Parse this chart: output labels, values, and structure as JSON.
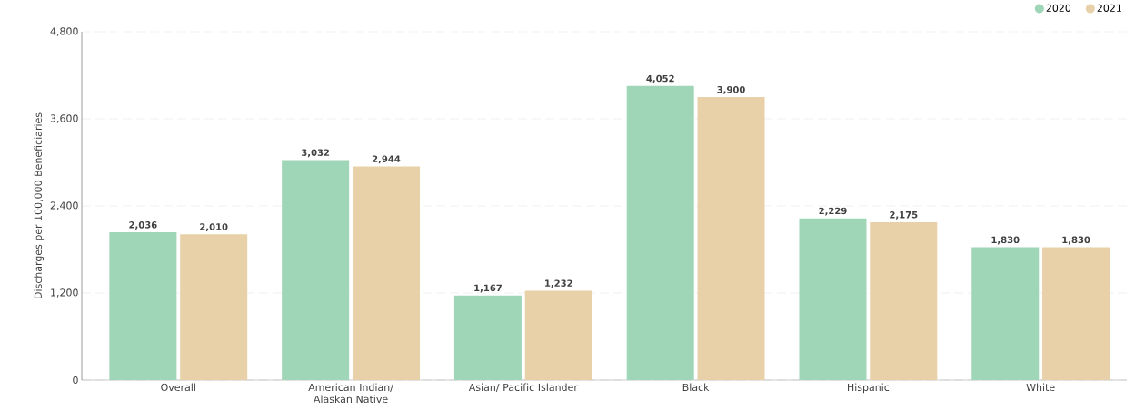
{
  "chart_data": {
    "type": "bar",
    "ylabel": "Discharges per 100,000 Beneficiaries",
    "categories": [
      "Overall",
      "American Indian/ Alaskan Native",
      "Asian/ Pacific Islander",
      "Black",
      "Hispanic",
      "White"
    ],
    "series": [
      {
        "name": "2020",
        "color": "#a0d6b8",
        "values": [
          2036,
          3032,
          1167,
          4052,
          2229,
          1830
        ],
        "value_labels": [
          "2,036",
          "3,032",
          "1,167",
          "4,052",
          "2,229",
          "1,830"
        ]
      },
      {
        "name": "2021",
        "color": "#e8d1a9",
        "values": [
          2010,
          2944,
          1232,
          3900,
          2175,
          1830
        ],
        "value_labels": [
          "2,010",
          "2,944",
          "1,232",
          "3,900",
          "2,175",
          "1,830"
        ]
      }
    ],
    "ylim": [
      0,
      4800
    ],
    "yticks": [
      0,
      {
        "value": 1200,
        "label": "1,200"
      },
      {
        "value": 2400,
        "label": "2,400"
      },
      {
        "value": 3600,
        "label": "3,600"
      },
      {
        "value": 4800,
        "label": "4,800"
      }
    ],
    "grid": "y",
    "legend": "top right"
  }
}
